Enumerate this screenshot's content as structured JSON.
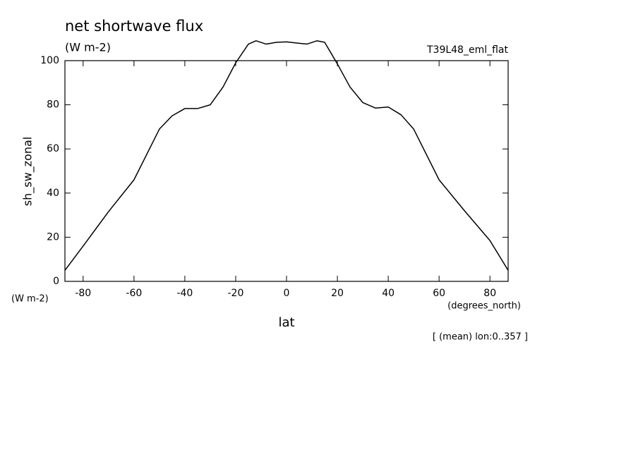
{
  "chart_data": {
    "type": "line",
    "title": "net shortwave flux",
    "units": "(W m-2)",
    "dataset": "T39L48_eml_flat",
    "ylabel": "sh_sw_zonal",
    "y_units": "(W m-2)",
    "xlabel": "lat",
    "x_units": "(degrees_north)",
    "note": "[ (mean) lon:0..357 ]",
    "x": [
      -87.16,
      -80,
      -70,
      -60,
      -50,
      -45,
      -40,
      -35,
      -30,
      -25,
      -20,
      -15,
      -12,
      -8,
      -4,
      0,
      4,
      8,
      12,
      15,
      20,
      25,
      30,
      35,
      40,
      45,
      50,
      60,
      70,
      80,
      87.16
    ],
    "series": [
      {
        "color": "#000000",
        "values": [
          5,
          16,
          31.6,
          46,
          69,
          75,
          78.3,
          78.3,
          80,
          88,
          99,
          107.5,
          109,
          107.5,
          108.3,
          108.5,
          108,
          107.5,
          109,
          108.3,
          98.5,
          88,
          81,
          78.5,
          79,
          75.5,
          69,
          46,
          32,
          18.5,
          5
        ]
      }
    ],
    "xlim": [
      -87.16,
      87.16
    ],
    "xticks": [
      -80,
      -60,
      -40,
      -20,
      0,
      20,
      40,
      60,
      80
    ],
    "ylim": [
      0,
      100
    ],
    "yticks": [
      0,
      20,
      40,
      60,
      80,
      100
    ]
  }
}
